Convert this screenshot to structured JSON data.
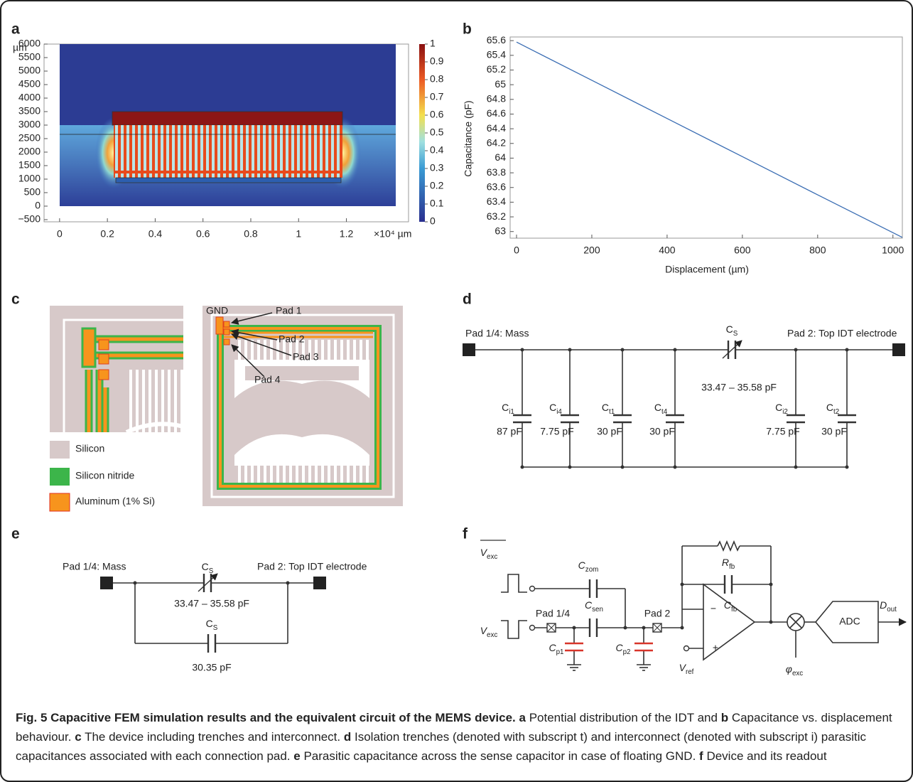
{
  "chart_data": [
    {
      "type": "heatmap",
      "label": "a",
      "y_unit": "µm",
      "x_unit": "×10⁴ µm",
      "xlim": [
        -0.065,
        1.46
      ],
      "xticks": [
        0,
        0.2,
        0.4,
        0.6,
        0.8,
        1,
        1.2
      ],
      "ylim": [
        -580,
        6000
      ],
      "yticks": [
        {
          "value": -500,
          "label": "−500"
        },
        0,
        500,
        1000,
        1500,
        2000,
        2500,
        3000,
        3500,
        4000,
        4500,
        5000,
        5500,
        6000
      ],
      "colorbar": {
        "lim": [
          0,
          1
        ],
        "ticks": [
          0,
          0.1,
          0.2,
          0.3,
          0.4,
          0.5,
          0.6,
          0.7,
          0.8,
          0.9,
          1
        ]
      }
    },
    {
      "type": "line",
      "label": "b",
      "x_label": "Displacement (µm)",
      "y_label": "Capacitance (pF)",
      "color": "#3a6db3",
      "x": [
        0,
        50,
        200,
        400,
        600,
        800,
        1025
      ],
      "values": [
        65.58,
        65.45,
        65.06,
        64.54,
        64.02,
        63.5,
        62.92
      ],
      "xlim": [
        -17,
        1025
      ],
      "xticks": [
        0,
        200,
        400,
        600,
        800,
        1000
      ],
      "ylim": [
        62.91,
        65.65
      ],
      "yticks": [
        63,
        63.2,
        63.4,
        63.6,
        63.8,
        64,
        64.2,
        64.4,
        64.6,
        64.8,
        65,
        65.2,
        65.4,
        65.6
      ]
    }
  ],
  "panels": {
    "c": {
      "label": "c",
      "legend": [
        "Silicon",
        "Silicon nitride",
        "Aluminum (1% Si)"
      ],
      "pads": [
        "GND",
        "Pad 1",
        "Pad 2",
        "Pad 3",
        "Pad 4"
      ]
    },
    "d": {
      "label": "d",
      "left_pad": "Pad 1/4: Mass",
      "right_pad": "Pad 2: Top IDT electrode",
      "sense": {
        "symbol": "C",
        "sub": "S"
      },
      "sense_range": "33.47 – 35.58 pF",
      "capacitors": [
        {
          "symbol": "C",
          "sub": "i1",
          "value": "87 pF"
        },
        {
          "symbol": "C",
          "sub": "i4",
          "value": "7.75 pF"
        },
        {
          "symbol": "C",
          "sub": "t1",
          "value": "30 pF"
        },
        {
          "symbol": "C",
          "sub": "t4",
          "value": "30 pF"
        },
        {
          "symbol": "C",
          "sub": "i2",
          "value": "7.75 pF"
        },
        {
          "symbol": "C",
          "sub": "t2",
          "value": "30 pF"
        }
      ]
    },
    "e": {
      "label": "e",
      "left_pad": "Pad 1/4: Mass",
      "right_pad": "Pad 2: Top IDT electrode",
      "sense": {
        "symbol": "C",
        "sub": "S"
      },
      "sense_range": "33.47 – 35.58 pF",
      "parallel": {
        "symbol": "C",
        "sub": "S"
      },
      "parallel_value": "30.35 pF"
    },
    "f": {
      "label": "f",
      "v_exc_bar": {
        "symbol": "V",
        "sub": "exc"
      },
      "v_exc": {
        "symbol": "V",
        "sub": "exc"
      },
      "pad_left": "Pad 1/4",
      "pad_right": "Pad 2",
      "c_zom": {
        "symbol": "C",
        "sub": "zom"
      },
      "c_sen": {
        "symbol": "C",
        "sub": "sen"
      },
      "c_p1": {
        "symbol": "C",
        "sub": "p1"
      },
      "c_p2": {
        "symbol": "C",
        "sub": "p2"
      },
      "r_fb": {
        "symbol": "R",
        "sub": "fb"
      },
      "c_fb": {
        "symbol": "C",
        "sub": "fb"
      },
      "v_ref": {
        "symbol": "V",
        "sub": "ref"
      },
      "phi_exc": {
        "symbol": "φ",
        "sub": "exc"
      },
      "minus": "−",
      "plus": "+",
      "adc": "ADC",
      "d_out": {
        "symbol": "D",
        "sub": "out"
      }
    }
  },
  "caption": {
    "title": "Fig. 5 Capacitive FEM simulation results and the equivalent circuit of the MEMS device.",
    "parts": [
      {
        "label": "a",
        "text": "Potential distribution of the IDT and"
      },
      {
        "label": "b",
        "text": "Capacitance vs. displacement behaviour."
      },
      {
        "label": "c",
        "text": "The device including trenches and interconnect."
      },
      {
        "label": "d",
        "text": "Isolation trenches (denoted with subscript t) and interconnect (denoted with subscript i) parasitic capacitances associated with each connection pad."
      },
      {
        "label": "e",
        "text": "Parasitic capacitance across the sense capacitor in case of floating GND."
      },
      {
        "label": "f",
        "text": "Device and its readout"
      }
    ]
  }
}
